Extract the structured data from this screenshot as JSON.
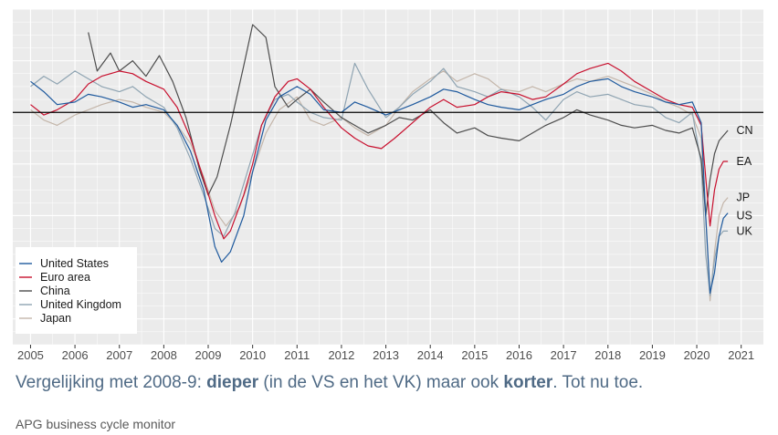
{
  "caption": {
    "part1": "Vergelijking met 2008-9: ",
    "bold1": "dieper",
    "part2": " (in de VS en het VK) maar ook ",
    "bold2": "korter",
    "part3": ". Tot nu toe."
  },
  "source": "APG business cycle monitor",
  "colors": {
    "us": "#1f5a9e",
    "ea": "#c8102e",
    "cn": "#4d4d4d",
    "uk": "#8fa4b2",
    "jp": "#c4b6aa",
    "panel": "#ebebeb",
    "grid": "#ffffff"
  },
  "chart_data": {
    "type": "line",
    "title": "",
    "xlabel": "",
    "ylabel": "",
    "xlim": [
      2004.6,
      2021.5
    ],
    "ylim": [
      -9,
      4
    ],
    "zero_line": 0,
    "grid": true,
    "x_ticks": [
      "2005",
      "2006",
      "2007",
      "2008",
      "2009",
      "2010",
      "2011",
      "2012",
      "2013",
      "2014",
      "2015",
      "2016",
      "2017",
      "2018",
      "2019",
      "2020",
      "2021"
    ],
    "legend_position": "bottom-left",
    "legend": [
      {
        "key": "us",
        "label": "United States"
      },
      {
        "key": "ea",
        "label": "Euro area"
      },
      {
        "key": "cn",
        "label": "China"
      },
      {
        "key": "uk",
        "label": "United Kingdom"
      },
      {
        "key": "jp",
        "label": "Japan"
      }
    ],
    "end_labels": [
      {
        "key": "cn",
        "label": "CN",
        "y": -0.7
      },
      {
        "key": "ea",
        "label": "EA",
        "y": -1.9
      },
      {
        "key": "jp",
        "label": "JP",
        "y": -3.3
      },
      {
        "key": "us",
        "label": "US",
        "y": -4.0
      },
      {
        "key": "uk",
        "label": "UK",
        "y": -4.6
      }
    ],
    "series": [
      {
        "key": "us",
        "name": "United States",
        "points": [
          [
            2005.0,
            1.2
          ],
          [
            2005.3,
            0.8
          ],
          [
            2005.6,
            0.3
          ],
          [
            2006.0,
            0.4
          ],
          [
            2006.3,
            0.7
          ],
          [
            2006.6,
            0.6
          ],
          [
            2007.0,
            0.4
          ],
          [
            2007.3,
            0.2
          ],
          [
            2007.6,
            0.3
          ],
          [
            2008.0,
            0.1
          ],
          [
            2008.3,
            -0.5
          ],
          [
            2008.6,
            -1.5
          ],
          [
            2008.9,
            -3.0
          ],
          [
            2009.15,
            -5.2
          ],
          [
            2009.3,
            -5.8
          ],
          [
            2009.5,
            -5.4
          ],
          [
            2009.8,
            -4.0
          ],
          [
            2010.0,
            -2.3
          ],
          [
            2010.3,
            -0.3
          ],
          [
            2010.6,
            0.6
          ],
          [
            2011.0,
            1.0
          ],
          [
            2011.3,
            0.7
          ],
          [
            2011.6,
            0.1
          ],
          [
            2012.0,
            0.0
          ],
          [
            2012.3,
            0.4
          ],
          [
            2012.6,
            0.2
          ],
          [
            2013.0,
            -0.1
          ],
          [
            2013.3,
            0.1
          ],
          [
            2013.6,
            0.3
          ],
          [
            2014.0,
            0.6
          ],
          [
            2014.3,
            0.9
          ],
          [
            2014.6,
            0.8
          ],
          [
            2015.0,
            0.5
          ],
          [
            2015.3,
            0.3
          ],
          [
            2015.6,
            0.2
          ],
          [
            2016.0,
            0.1
          ],
          [
            2016.3,
            0.3
          ],
          [
            2016.6,
            0.5
          ],
          [
            2017.0,
            0.7
          ],
          [
            2017.3,
            1.0
          ],
          [
            2017.6,
            1.2
          ],
          [
            2018.0,
            1.3
          ],
          [
            2018.3,
            1.0
          ],
          [
            2018.6,
            0.8
          ],
          [
            2019.0,
            0.6
          ],
          [
            2019.3,
            0.4
          ],
          [
            2019.6,
            0.3
          ],
          [
            2019.9,
            0.4
          ],
          [
            2020.1,
            -0.4
          ],
          [
            2020.2,
            -4.0
          ],
          [
            2020.3,
            -7.0
          ],
          [
            2020.4,
            -6.2
          ],
          [
            2020.5,
            -4.8
          ],
          [
            2020.6,
            -4.1
          ],
          [
            2020.7,
            -3.9
          ]
        ]
      },
      {
        "key": "ea",
        "name": "Euro area",
        "points": [
          [
            2005.0,
            0.3
          ],
          [
            2005.3,
            -0.1
          ],
          [
            2005.6,
            0.1
          ],
          [
            2006.0,
            0.5
          ],
          [
            2006.3,
            1.1
          ],
          [
            2006.6,
            1.4
          ],
          [
            2007.0,
            1.6
          ],
          [
            2007.3,
            1.5
          ],
          [
            2007.6,
            1.2
          ],
          [
            2008.0,
            0.9
          ],
          [
            2008.3,
            0.2
          ],
          [
            2008.6,
            -1.0
          ],
          [
            2008.9,
            -2.6
          ],
          [
            2009.15,
            -4.0
          ],
          [
            2009.35,
            -4.9
          ],
          [
            2009.5,
            -4.6
          ],
          [
            2009.8,
            -3.2
          ],
          [
            2010.0,
            -2.0
          ],
          [
            2010.2,
            -0.5
          ],
          [
            2010.5,
            0.6
          ],
          [
            2010.8,
            1.2
          ],
          [
            2011.0,
            1.3
          ],
          [
            2011.3,
            0.9
          ],
          [
            2011.6,
            0.2
          ],
          [
            2012.0,
            -0.6
          ],
          [
            2012.3,
            -1.0
          ],
          [
            2012.6,
            -1.3
          ],
          [
            2012.9,
            -1.4
          ],
          [
            2013.2,
            -1.0
          ],
          [
            2013.6,
            -0.4
          ],
          [
            2014.0,
            0.2
          ],
          [
            2014.3,
            0.5
          ],
          [
            2014.6,
            0.2
          ],
          [
            2015.0,
            0.3
          ],
          [
            2015.3,
            0.6
          ],
          [
            2015.6,
            0.8
          ],
          [
            2016.0,
            0.7
          ],
          [
            2016.3,
            0.5
          ],
          [
            2016.6,
            0.6
          ],
          [
            2017.0,
            1.1
          ],
          [
            2017.3,
            1.5
          ],
          [
            2017.6,
            1.7
          ],
          [
            2018.0,
            1.9
          ],
          [
            2018.3,
            1.6
          ],
          [
            2018.6,
            1.2
          ],
          [
            2019.0,
            0.8
          ],
          [
            2019.3,
            0.5
          ],
          [
            2019.6,
            0.3
          ],
          [
            2019.9,
            0.2
          ],
          [
            2020.1,
            -0.5
          ],
          [
            2020.2,
            -2.5
          ],
          [
            2020.3,
            -4.4
          ],
          [
            2020.4,
            -3.0
          ],
          [
            2020.5,
            -2.2
          ],
          [
            2020.6,
            -1.9
          ],
          [
            2020.7,
            -1.9
          ]
        ]
      },
      {
        "key": "cn",
        "name": "China",
        "points": [
          [
            2006.3,
            3.1
          ],
          [
            2006.5,
            1.6
          ],
          [
            2006.8,
            2.3
          ],
          [
            2007.0,
            1.6
          ],
          [
            2007.3,
            2.0
          ],
          [
            2007.6,
            1.4
          ],
          [
            2007.9,
            2.2
          ],
          [
            2008.2,
            1.2
          ],
          [
            2008.5,
            -0.2
          ],
          [
            2008.8,
            -2.2
          ],
          [
            2009.0,
            -3.2
          ],
          [
            2009.2,
            -2.5
          ],
          [
            2009.5,
            -0.5
          ],
          [
            2009.8,
            1.8
          ],
          [
            2010.0,
            3.4
          ],
          [
            2010.3,
            2.9
          ],
          [
            2010.5,
            1.0
          ],
          [
            2010.8,
            0.2
          ],
          [
            2011.0,
            0.5
          ],
          [
            2011.3,
            0.9
          ],
          [
            2011.6,
            0.4
          ],
          [
            2012.0,
            -0.2
          ],
          [
            2012.3,
            -0.5
          ],
          [
            2012.6,
            -0.8
          ],
          [
            2013.0,
            -0.5
          ],
          [
            2013.3,
            -0.2
          ],
          [
            2013.6,
            -0.3
          ],
          [
            2014.0,
            0.1
          ],
          [
            2014.3,
            -0.4
          ],
          [
            2014.6,
            -0.8
          ],
          [
            2015.0,
            -0.6
          ],
          [
            2015.3,
            -0.9
          ],
          [
            2015.6,
            -1.0
          ],
          [
            2016.0,
            -1.1
          ],
          [
            2016.3,
            -0.8
          ],
          [
            2016.6,
            -0.5
          ],
          [
            2017.0,
            -0.2
          ],
          [
            2017.3,
            0.1
          ],
          [
            2017.6,
            -0.1
          ],
          [
            2018.0,
            -0.3
          ],
          [
            2018.3,
            -0.5
          ],
          [
            2018.6,
            -0.6
          ],
          [
            2019.0,
            -0.5
          ],
          [
            2019.3,
            -0.7
          ],
          [
            2019.6,
            -0.8
          ],
          [
            2019.9,
            -0.6
          ],
          [
            2020.1,
            -1.8
          ],
          [
            2020.2,
            -4.0
          ],
          [
            2020.3,
            -2.6
          ],
          [
            2020.4,
            -1.6
          ],
          [
            2020.5,
            -1.1
          ],
          [
            2020.6,
            -0.9
          ],
          [
            2020.7,
            -0.7
          ]
        ]
      },
      {
        "key": "uk",
        "name": "United Kingdom",
        "points": [
          [
            2005.0,
            1.0
          ],
          [
            2005.3,
            1.4
          ],
          [
            2005.6,
            1.1
          ],
          [
            2006.0,
            1.6
          ],
          [
            2006.3,
            1.3
          ],
          [
            2006.6,
            1.0
          ],
          [
            2007.0,
            0.8
          ],
          [
            2007.3,
            1.0
          ],
          [
            2007.6,
            0.6
          ],
          [
            2008.0,
            0.2
          ],
          [
            2008.3,
            -0.6
          ],
          [
            2008.6,
            -1.8
          ],
          [
            2008.9,
            -3.2
          ],
          [
            2009.15,
            -4.5
          ],
          [
            2009.35,
            -4.8
          ],
          [
            2009.6,
            -3.9
          ],
          [
            2009.9,
            -2.2
          ],
          [
            2010.2,
            -0.5
          ],
          [
            2010.5,
            0.5
          ],
          [
            2010.8,
            0.7
          ],
          [
            2011.0,
            0.4
          ],
          [
            2011.3,
            0.0
          ],
          [
            2011.6,
            -0.2
          ],
          [
            2012.0,
            -0.3
          ],
          [
            2012.3,
            1.9
          ],
          [
            2012.6,
            0.9
          ],
          [
            2013.0,
            -0.2
          ],
          [
            2013.3,
            0.2
          ],
          [
            2013.6,
            0.7
          ],
          [
            2014.0,
            1.2
          ],
          [
            2014.3,
            1.7
          ],
          [
            2014.6,
            1.0
          ],
          [
            2015.0,
            0.8
          ],
          [
            2015.3,
            0.6
          ],
          [
            2015.6,
            0.9
          ],
          [
            2016.0,
            0.6
          ],
          [
            2016.3,
            0.2
          ],
          [
            2016.6,
            -0.3
          ],
          [
            2017.0,
            0.5
          ],
          [
            2017.3,
            0.8
          ],
          [
            2017.6,
            0.6
          ],
          [
            2018.0,
            0.7
          ],
          [
            2018.3,
            0.5
          ],
          [
            2018.6,
            0.3
          ],
          [
            2019.0,
            0.2
          ],
          [
            2019.3,
            -0.2
          ],
          [
            2019.6,
            -0.4
          ],
          [
            2019.9,
            0.0
          ],
          [
            2020.1,
            -2.0
          ],
          [
            2020.2,
            -5.5
          ],
          [
            2020.3,
            -7.1
          ],
          [
            2020.4,
            -5.7
          ],
          [
            2020.5,
            -4.8
          ],
          [
            2020.6,
            -4.6
          ],
          [
            2020.7,
            -4.6
          ]
        ]
      },
      {
        "key": "jp",
        "name": "Japan",
        "points": [
          [
            2005.0,
            0.1
          ],
          [
            2005.3,
            -0.3
          ],
          [
            2005.6,
            -0.5
          ],
          [
            2006.0,
            -0.1
          ],
          [
            2006.3,
            0.1
          ],
          [
            2006.6,
            0.3
          ],
          [
            2007.0,
            0.5
          ],
          [
            2007.3,
            0.4
          ],
          [
            2007.6,
            0.2
          ],
          [
            2008.0,
            0.0
          ],
          [
            2008.3,
            -0.5
          ],
          [
            2008.6,
            -1.2
          ],
          [
            2008.9,
            -2.5
          ],
          [
            2009.15,
            -3.8
          ],
          [
            2009.4,
            -4.4
          ],
          [
            2009.7,
            -3.7
          ],
          [
            2010.0,
            -2.3
          ],
          [
            2010.3,
            -0.8
          ],
          [
            2010.6,
            0.1
          ],
          [
            2011.0,
            0.6
          ],
          [
            2011.3,
            -0.3
          ],
          [
            2011.6,
            -0.5
          ],
          [
            2012.0,
            -0.2
          ],
          [
            2012.3,
            -0.6
          ],
          [
            2012.6,
            -0.9
          ],
          [
            2013.0,
            -0.5
          ],
          [
            2013.3,
            0.2
          ],
          [
            2013.6,
            0.8
          ],
          [
            2014.0,
            1.3
          ],
          [
            2014.3,
            1.6
          ],
          [
            2014.6,
            1.2
          ],
          [
            2015.0,
            1.5
          ],
          [
            2015.3,
            1.3
          ],
          [
            2015.6,
            0.9
          ],
          [
            2016.0,
            0.8
          ],
          [
            2016.3,
            1.0
          ],
          [
            2016.6,
            0.8
          ],
          [
            2017.0,
            1.1
          ],
          [
            2017.3,
            1.3
          ],
          [
            2017.6,
            1.2
          ],
          [
            2018.0,
            1.4
          ],
          [
            2018.3,
            1.2
          ],
          [
            2018.6,
            1.0
          ],
          [
            2019.0,
            0.7
          ],
          [
            2019.3,
            0.4
          ],
          [
            2019.6,
            0.2
          ],
          [
            2019.9,
            -0.1
          ],
          [
            2020.1,
            -1.0
          ],
          [
            2020.2,
            -4.0
          ],
          [
            2020.3,
            -7.3
          ],
          [
            2020.4,
            -5.4
          ],
          [
            2020.5,
            -4.0
          ],
          [
            2020.6,
            -3.5
          ],
          [
            2020.7,
            -3.3
          ]
        ]
      }
    ]
  }
}
